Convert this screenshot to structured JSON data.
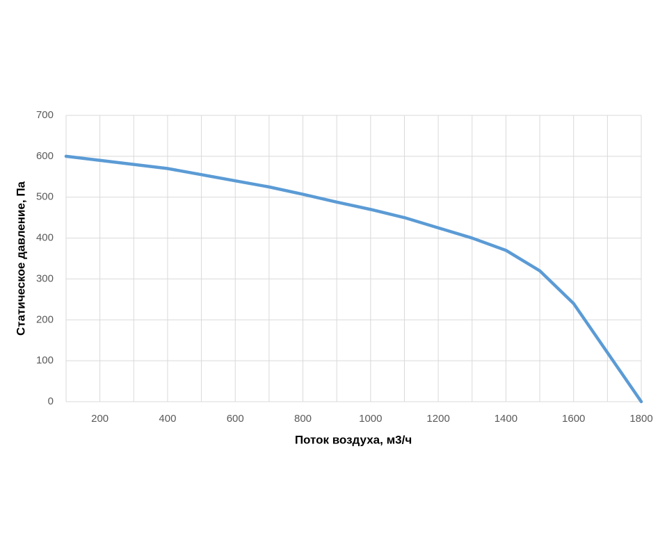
{
  "chart_data": {
    "type": "line",
    "xlabel": "Поток воздуха, м3/ч",
    "ylabel": "Статическое давление, Па",
    "x": [
      100,
      200,
      300,
      400,
      500,
      600,
      700,
      800,
      900,
      1000,
      1100,
      1200,
      1300,
      1400,
      1500,
      1600,
      1700,
      1800
    ],
    "series": [
      {
        "color": "#5b9bd5",
        "values": [
          600,
          590,
          580,
          570,
          555,
          540,
          525,
          507,
          488,
          470,
          450,
          425,
          400,
          370,
          320,
          240,
          120,
          0
        ]
      }
    ],
    "xlim": [
      100,
      1800
    ],
    "ylim": [
      0,
      700
    ],
    "xticks": [
      200,
      400,
      600,
      800,
      1000,
      1200,
      1400,
      1600,
      1800
    ],
    "x_minor_ticks": [
      300,
      500,
      700,
      900,
      1100,
      1300,
      1500,
      1700
    ],
    "yticks": [
      0,
      100,
      200,
      300,
      400,
      500,
      600,
      700
    ],
    "grid": true
  }
}
